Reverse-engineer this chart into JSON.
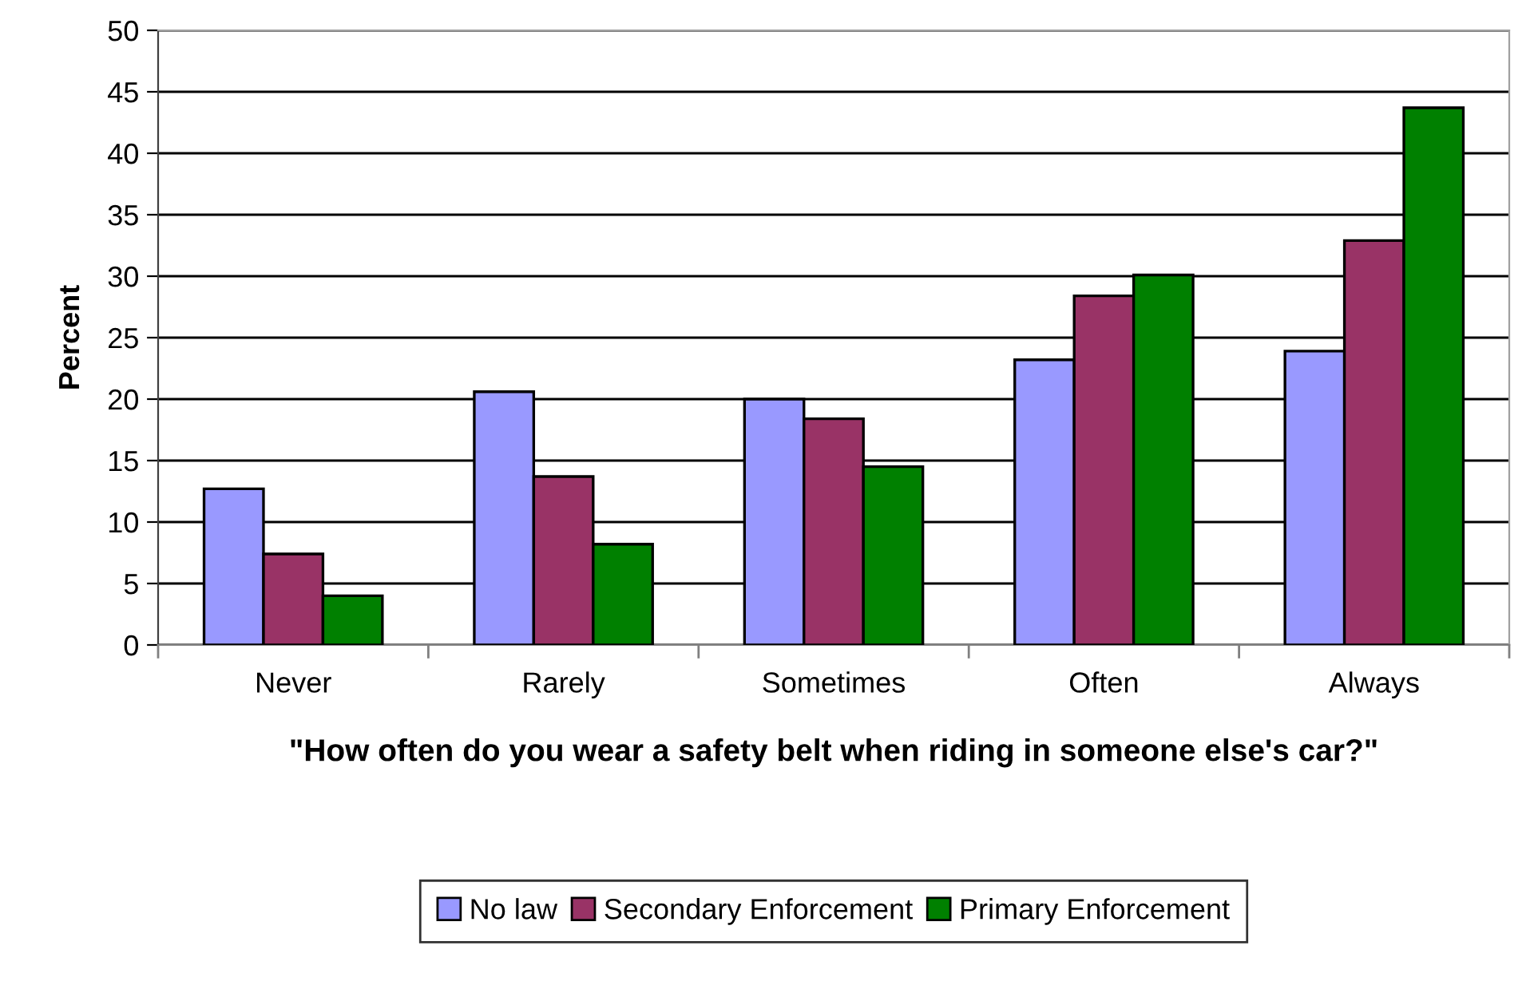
{
  "chart_data": {
    "type": "bar",
    "xlabel": "\"How often do you wear a safety belt when riding in someone else's car?\"",
    "ylabel": "Percent",
    "categories": [
      "Never",
      "Rarely",
      "Sometimes",
      "Often",
      "Always"
    ],
    "series": [
      {
        "name": "No law",
        "color": "#9999ff",
        "values": [
          12.7,
          20.6,
          20.0,
          23.2,
          23.9
        ]
      },
      {
        "name": "Secondary Enforcement",
        "color": "#993366",
        "values": [
          7.4,
          13.7,
          18.4,
          28.4,
          32.9
        ]
      },
      {
        "name": "Primary Enforcement",
        "color": "#008000",
        "values": [
          4.0,
          8.2,
          14.5,
          30.1,
          43.7
        ]
      }
    ],
    "ylim": [
      0,
      50
    ],
    "yticks": [
      0,
      5,
      10,
      15,
      20,
      25,
      30,
      35,
      40,
      45,
      50
    ],
    "grid": "y",
    "legend": "bottom"
  }
}
